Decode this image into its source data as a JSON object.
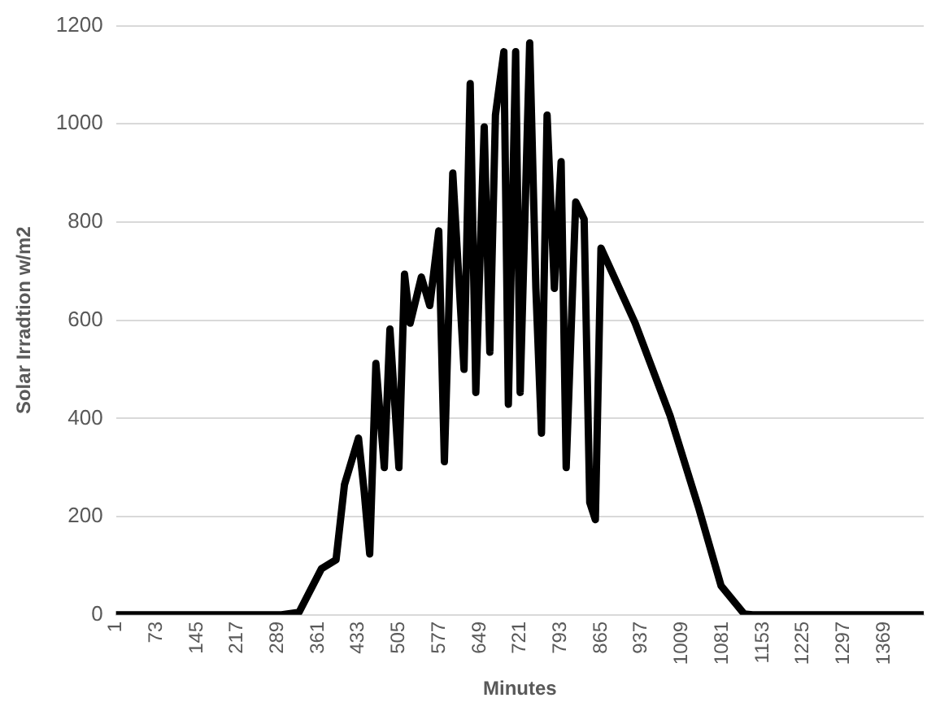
{
  "chart_data": {
    "type": "line",
    "xlabel": "Minutes",
    "ylabel": "Solar Irradtion w/m2",
    "x": [
      1,
      296,
      327,
      367,
      393,
      408,
      433,
      443,
      453,
      464,
      479,
      489,
      505,
      515,
      525,
      545,
      560,
      576,
      586,
      601,
      621,
      632,
      642,
      657,
      667,
      677,
      692,
      700,
      713,
      721,
      738,
      749,
      759,
      769,
      782,
      794,
      803,
      820,
      835,
      845,
      855,
      865,
      926,
      988,
      1039,
      1079,
      1120,
      1135,
      1440
    ],
    "series": [
      {
        "color": "#000000",
        "values": [
          0,
          0,
          5,
          94,
          112,
          265,
          360,
          253,
          124,
          512,
          300,
          582,
          300,
          694,
          594,
          688,
          630,
          782,
          312,
          900,
          500,
          1082,
          453,
          994,
          535,
          1018,
          1147,
          429,
          1147,
          453,
          1165,
          665,
          370,
          1018,
          665,
          923,
          300,
          841,
          806,
          229,
          194,
          747,
          594,
          406,
          218,
          59,
          2,
          0,
          0
        ]
      }
    ],
    "xlim": [
      1,
      1440
    ],
    "xticks": [
      1,
      73,
      145,
      217,
      289,
      361,
      433,
      505,
      577,
      649,
      721,
      793,
      865,
      937,
      1009,
      1081,
      1153,
      1225,
      1297,
      1369
    ],
    "ylim": [
      0,
      1200
    ],
    "yticks": [
      0,
      200,
      400,
      600,
      800,
      1000,
      1200
    ],
    "grid": "y",
    "legend": false,
    "marker": "none",
    "line_style": "solid"
  }
}
